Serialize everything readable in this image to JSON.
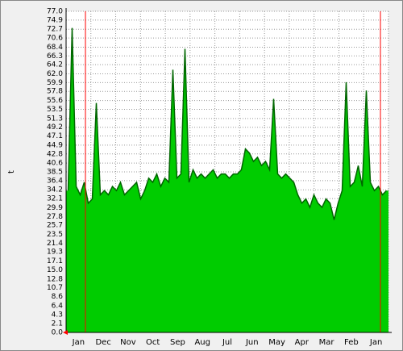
{
  "chart_data": {
    "type": "area",
    "y_label": "t",
    "x_tick_labels": [
      "Jan",
      "Dec",
      "Nov",
      "Oct",
      "Sep",
      "Aug",
      "Jul",
      "Jun",
      "May",
      "Apr",
      "Mar",
      "Feb",
      "Jan"
    ],
    "series": [
      {
        "color": "#00cc00",
        "line_color": "#006600",
        "values": [
          34,
          73,
          35,
          33,
          36,
          31,
          32,
          55,
          33,
          34,
          33,
          35,
          34,
          36,
          33,
          34,
          35,
          36,
          32,
          34,
          37,
          36,
          38,
          35,
          37,
          36,
          63,
          37,
          38,
          68,
          36,
          39,
          37,
          38,
          37,
          38,
          39,
          37,
          38,
          38,
          37,
          38,
          38,
          39,
          44,
          43,
          41,
          42,
          40,
          41,
          39,
          56,
          38,
          37,
          38,
          37,
          36,
          33,
          31,
          32,
          30,
          33,
          31,
          30,
          32,
          31,
          27,
          31,
          34,
          60,
          35,
          36,
          40,
          35,
          58,
          36,
          34,
          35,
          33,
          34
        ]
      }
    ],
    "ylim": [
      0,
      77
    ],
    "yticks": [
      {
        "value": 0,
        "label": "0.0"
      },
      {
        "value": 2.1,
        "label": "2.1"
      },
      {
        "value": 4.3,
        "label": "4.3"
      },
      {
        "value": 6.4,
        "label": "6.4"
      },
      {
        "value": 8.6,
        "label": "8.6"
      },
      {
        "value": 10.7,
        "label": "10.7"
      },
      {
        "value": 12.8,
        "label": "12.8"
      },
      {
        "value": 15,
        "label": "15.0"
      },
      {
        "value": 17.1,
        "label": "17.1"
      },
      {
        "value": 19.3,
        "label": "19.3"
      },
      {
        "value": 21.4,
        "label": "21.4"
      },
      {
        "value": 23.5,
        "label": "23.5"
      },
      {
        "value": 25.7,
        "label": "25.7"
      },
      {
        "value": 27.8,
        "label": "27.8"
      },
      {
        "value": 29.9,
        "label": "29.9"
      },
      {
        "value": 32.1,
        "label": "32.1"
      },
      {
        "value": 34.2,
        "label": "34.2"
      },
      {
        "value": 36.4,
        "label": "36.4"
      },
      {
        "value": 38.5,
        "label": "38.5"
      },
      {
        "value": 40.6,
        "label": "40.6"
      },
      {
        "value": 42.8,
        "label": "42.8"
      },
      {
        "value": 44.9,
        "label": "44.9"
      },
      {
        "value": 47.1,
        "label": "47.1"
      },
      {
        "value": 49.2,
        "label": "49.2"
      },
      {
        "value": 51.3,
        "label": "51.3"
      },
      {
        "value": 53.5,
        "label": "53.5"
      },
      {
        "value": 55.6,
        "label": "55.6"
      },
      {
        "value": 57.8,
        "label": "57.8"
      },
      {
        "value": 59.9,
        "label": "59.9"
      },
      {
        "value": 62,
        "label": "62.0"
      },
      {
        "value": 64.2,
        "label": "64.2"
      },
      {
        "value": 66.3,
        "label": "66.3"
      },
      {
        "value": 68.4,
        "label": "68.4"
      },
      {
        "value": 70.6,
        "label": "70.6"
      },
      {
        "value": 72.7,
        "label": "72.7"
      },
      {
        "value": 74.9,
        "label": "74.9"
      },
      {
        "value": 77,
        "label": "77.0"
      }
    ],
    "grid": true
  }
}
